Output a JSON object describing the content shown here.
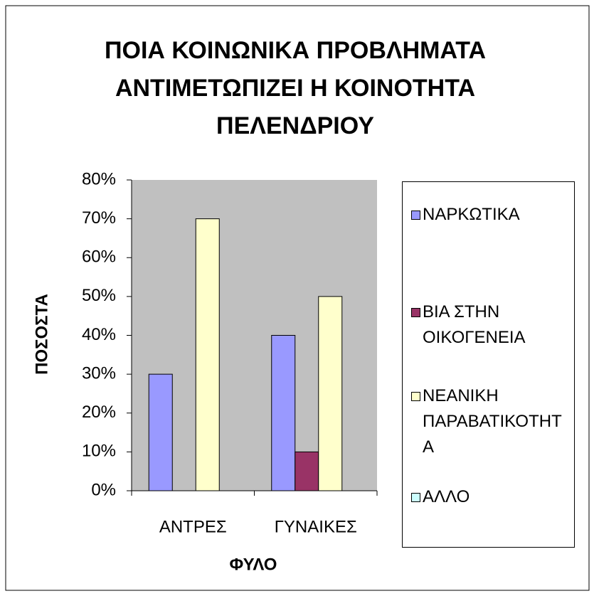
{
  "chart_data": {
    "type": "bar",
    "title": "ΠΟΙΑ ΚΟΙΝΩΝΙΚΑ ΠΡΟΒΛΗΜΑΤΑ ΑΝΤΙΜΕΤΩΠΙΖΕΙ Η ΚΟΙΝΟΤΗΤΑ ΠΕΛΕΝΔΡΙΟΥ",
    "x_label": "ΦΥΛΟ",
    "y_label": "ΠΟΣΟΣΤΑ",
    "categories": [
      "ΑΝΤΡΕΣ",
      "ΓΥΝΑΙΚΕΣ"
    ],
    "series": [
      {
        "name": "ΝΑΡΚΩΤΙΚΑ",
        "color": "#9999ff",
        "values": [
          30,
          40
        ]
      },
      {
        "name": "ΒΙΑ ΣΤΗΝ ΟΙΚΟΓΕΝΕΙΑ",
        "color": "#993366",
        "values": [
          0,
          10
        ]
      },
      {
        "name": "ΝΕΑΝΙΚΗ ΠΑΡΑΒΑΤΙΚΟΤΗΤΑ",
        "color": "#ffffcc",
        "values": [
          70,
          50
        ]
      },
      {
        "name": "ΑΛΛΟ",
        "color": "#ccffff",
        "values": [
          0,
          0
        ]
      }
    ],
    "ylim": [
      0,
      80
    ],
    "yticks": [
      {
        "value": 0,
        "label": "0%"
      },
      {
        "value": 10,
        "label": "10%"
      },
      {
        "value": 20,
        "label": "20%"
      },
      {
        "value": 30,
        "label": "30%"
      },
      {
        "value": 40,
        "label": "40%"
      },
      {
        "value": 50,
        "label": "50%"
      },
      {
        "value": 60,
        "label": "60%"
      },
      {
        "value": 70,
        "label": "70%"
      },
      {
        "value": 80,
        "label": "80%"
      }
    ],
    "grid": false,
    "plot_background": "#c0c0c0",
    "legend": "right"
  }
}
